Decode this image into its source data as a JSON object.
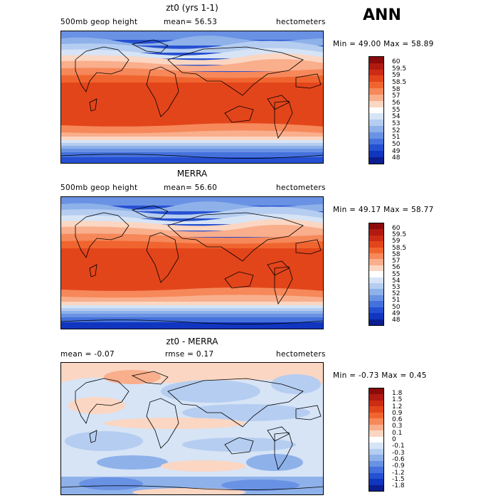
{
  "header": {
    "season": "ANN"
  },
  "panels": [
    {
      "title": "zt0 (yrs 1-1)",
      "left_label": "500mb geop height",
      "mid_label": "mean=  56.53",
      "units": "hectometers",
      "minmax": "Min =  49.00 Max =  58.89",
      "colorbar_labels": [
        "60",
        "59.5",
        "59",
        "58.5",
        "58",
        "57",
        "56",
        "55",
        "54",
        "53",
        "52",
        "51",
        "50",
        "49",
        "48"
      ],
      "colorbar_colors": [
        "#8b0a0a",
        "#b01a10",
        "#cc2c14",
        "#e3451b",
        "#f0652f",
        "#f6885a",
        "#f9ae8c",
        "#fbd6c2",
        "#ffffff",
        "#d6e4f6",
        "#b5cdf0",
        "#8eb1ea",
        "#6a92e4",
        "#4571dc",
        "#2650d2",
        "#1036c0",
        "#0b1e8f"
      ]
    },
    {
      "title": "MERRA",
      "left_label": "500mb geop height",
      "mid_label": "mean=  56.60",
      "units": "hectometers",
      "minmax": "Min =  49.17 Max =  58.77",
      "colorbar_labels": [
        "60",
        "59.5",
        "59",
        "58.5",
        "58",
        "57",
        "56",
        "55",
        "54",
        "53",
        "52",
        "51",
        "50",
        "49",
        "48"
      ],
      "colorbar_colors": [
        "#8b0a0a",
        "#b01a10",
        "#cc2c14",
        "#e3451b",
        "#f0652f",
        "#f6885a",
        "#f9ae8c",
        "#fbd6c2",
        "#ffffff",
        "#d6e4f6",
        "#b5cdf0",
        "#8eb1ea",
        "#6a92e4",
        "#4571dc",
        "#2650d2",
        "#1036c0",
        "#0b1e8f"
      ]
    },
    {
      "title": "zt0 - MERRA",
      "left_label": "mean =  -0.07",
      "mid_label": "rmse =   0.17",
      "units": "hectometers",
      "minmax": "Min = -0.73 Max =   0.45",
      "colorbar_labels": [
        "1.8",
        "1.5",
        "1.2",
        "0.9",
        "0.6",
        "0.3",
        "0.1",
        "0",
        "-0.1",
        "-0.3",
        "-0.6",
        "-0.9",
        "-1.2",
        "-1.5",
        "-1.8"
      ],
      "colorbar_colors": [
        "#8b0a0a",
        "#b01a10",
        "#cc2c14",
        "#e3451b",
        "#f0652f",
        "#f6885a",
        "#f9ae8c",
        "#fbd6c2",
        "#ffffff",
        "#d6e4f6",
        "#b5cdf0",
        "#8eb1ea",
        "#6a92e4",
        "#4571dc",
        "#2650d2",
        "#1036c0",
        "#0b1e8f"
      ]
    }
  ]
}
